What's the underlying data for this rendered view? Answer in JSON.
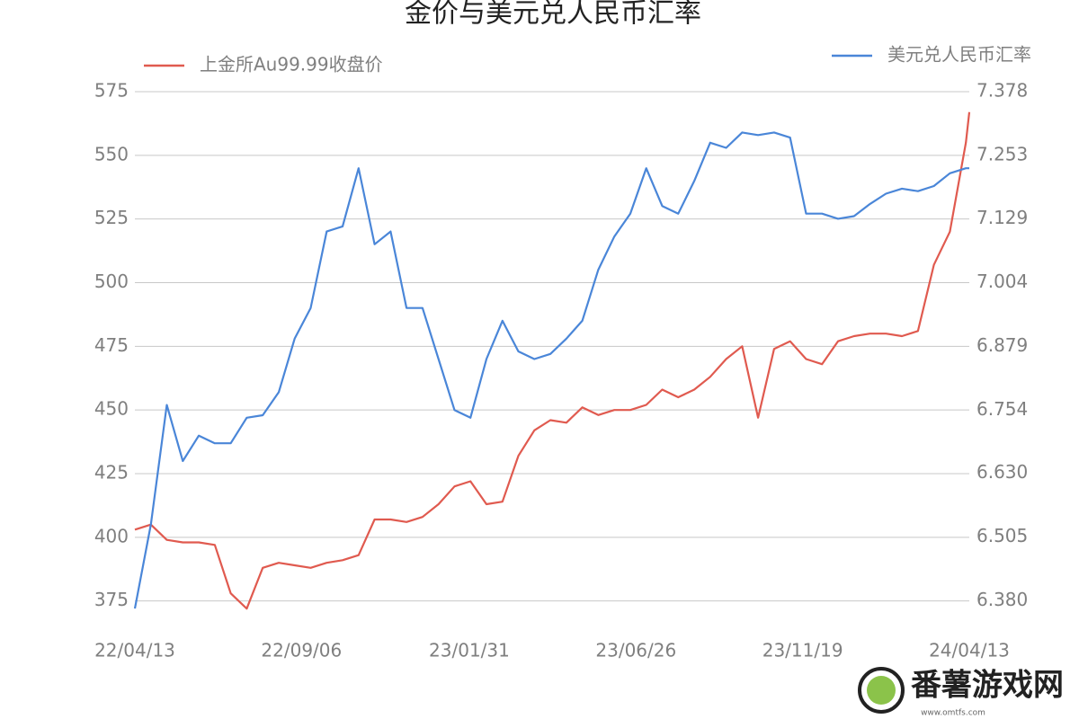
{
  "chart_data": {
    "type": "line",
    "title": "金价与美元兑人民币汇率",
    "x": [
      "22/04/13",
      "22/04/27",
      "22/05/11",
      "22/05/25",
      "22/06/08",
      "22/06/22",
      "22/07/06",
      "22/07/20",
      "22/08/03",
      "22/08/17",
      "22/08/31",
      "22/09/14",
      "22/09/28",
      "22/10/12",
      "22/10/26",
      "22/11/09",
      "22/11/23",
      "22/12/07",
      "22/12/21",
      "23/01/04",
      "23/01/18",
      "23/02/01",
      "23/02/15",
      "23/03/01",
      "23/03/15",
      "23/03/29",
      "23/04/12",
      "23/04/26",
      "23/05/10",
      "23/05/24",
      "23/06/07",
      "23/06/21",
      "23/07/05",
      "23/07/19",
      "23/08/02",
      "23/08/16",
      "23/08/30",
      "23/09/13",
      "23/09/27",
      "23/10/11",
      "23/10/25",
      "23/11/08",
      "23/11/22",
      "23/12/06",
      "23/12/20",
      "24/01/03",
      "24/01/17",
      "24/01/31",
      "24/02/14",
      "24/02/28",
      "24/03/13",
      "24/03/27",
      "24/04/10",
      "24/04/13"
    ],
    "xlim": [
      "22/04/13",
      "24/04/13"
    ],
    "xticks": [
      "22/04/13",
      "22/09/06",
      "23/01/31",
      "23/06/26",
      "23/11/19",
      "24/04/13"
    ],
    "series": [
      {
        "name": "上金所Au99.99收盘价",
        "color": "#e05a4f",
        "axis": "y",
        "values": [
          403,
          405,
          399,
          398,
          398,
          397,
          378,
          372,
          388,
          390,
          389,
          388,
          390,
          391,
          393,
          407,
          407,
          406,
          408,
          413,
          420,
          422,
          413,
          414,
          432,
          442,
          446,
          445,
          451,
          448,
          450,
          450,
          452,
          458,
          455,
          458,
          463,
          470,
          475,
          447,
          474,
          477,
          470,
          468,
          477,
          479,
          480,
          480,
          479,
          481,
          507,
          520,
          555,
          567
        ]
      },
      {
        "name": "美元兑人民币汇率",
        "color": "#4a86d8",
        "axis": "y2",
        "values": [
          6.365,
          6.53,
          6.764,
          6.654,
          6.704,
          6.689,
          6.689,
          6.739,
          6.744,
          6.789,
          6.894,
          6.954,
          7.104,
          7.114,
          7.228,
          7.079,
          7.104,
          6.954,
          6.954,
          6.854,
          6.754,
          6.739,
          6.854,
          6.929,
          6.869,
          6.854,
          6.864,
          6.894,
          6.929,
          7.029,
          7.094,
          7.139,
          7.228,
          7.154,
          7.139,
          7.203,
          7.278,
          7.268,
          7.298,
          7.293,
          7.298,
          7.288,
          7.139,
          7.139,
          7.129,
          7.134,
          7.158,
          7.178,
          7.188,
          7.183,
          7.193,
          7.218,
          7.228,
          7.228
        ]
      }
    ],
    "ylim": [
      365,
      575
    ],
    "yticks": [
      375,
      400,
      425,
      450,
      475,
      500,
      525,
      550,
      575
    ],
    "y2lim": [
      6.33,
      7.378
    ],
    "y2ticks": [
      {
        "value": 6.38,
        "label": "6.380"
      },
      6.505,
      {
        "value": 6.63,
        "label": "6.630"
      },
      6.754,
      6.879,
      7.004,
      7.129,
      7.253,
      7.378
    ],
    "grid": true
  },
  "watermark": {
    "name": "番薯游戏网",
    "url": "www.omtfs.com"
  }
}
